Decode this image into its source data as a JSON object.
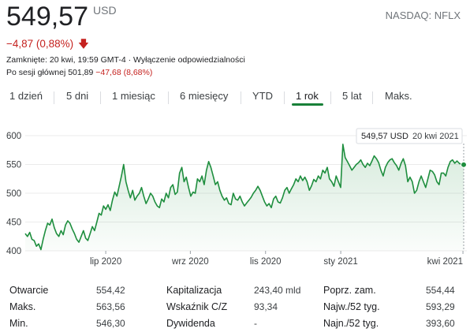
{
  "quote": {
    "price": "549,57",
    "currency": "USD",
    "ticker": "NASDAQ: NFLX",
    "change": "−4,87 (0,88%)",
    "change_arrow": "down-arrow-icon",
    "closed_line": "Zamknięte: 20 kwi, 19:59 GMT-4 · Wyłączenie odpowiedzialności",
    "after_hours_prefix": "Po sesji głównej 501,89",
    "after_hours_change": "−47,68 (8,68%)"
  },
  "tabs": [
    "1 dzień",
    "5 dni",
    "1 miesiąc",
    "6 miesięcy",
    "YTD",
    "1 rok",
    "5 lat",
    "Maks."
  ],
  "active_tab": 5,
  "tooltip": {
    "price": "549,57 USD",
    "date": "20 kwi 2021"
  },
  "colors": {
    "line": "#1e8e3e",
    "negative": "#c5221f",
    "active_tab": "#188038"
  },
  "chart_data": {
    "type": "area",
    "y_ticks": [
      "600",
      "550",
      "500",
      "450",
      "400"
    ],
    "ylim": [
      400,
      600
    ],
    "x_ticks": [
      "lip 2020",
      "wrz 2020",
      "lis 2020",
      "sty 2021",
      "kwi 2021"
    ],
    "x_tick_pos": [
      0.225,
      0.405,
      0.565,
      0.725,
      0.985
    ],
    "series": [
      {
        "values": [
          430,
          425,
          432,
          420,
          418,
          408,
          412,
          402,
          420,
          435,
          448,
          445,
          455,
          440,
          430,
          425,
          435,
          428,
          445,
          452,
          448,
          438,
          430,
          420,
          415,
          425,
          435,
          422,
          418,
          430,
          442,
          435,
          450,
          465,
          462,
          478,
          472,
          480,
          470,
          488,
          502,
          495,
          512,
          530,
          550,
          520,
          505,
          492,
          505,
          488,
          495,
          500,
          510,
          495,
          482,
          490,
          500,
          495,
          485,
          478,
          475,
          490,
          485,
          500,
          492,
          510,
          515,
          498,
          502,
          535,
          545,
          520,
          528,
          510,
          495,
          502,
          500,
          525,
          520,
          530,
          515,
          540,
          555,
          545,
          530,
          515,
          520,
          505,
          495,
          488,
          492,
          482,
          480,
          500,
          490,
          488,
          495,
          485,
          478,
          483,
          488,
          493,
          500,
          505,
          512,
          505,
          495,
          485,
          478,
          482,
          475,
          490,
          495,
          485,
          483,
          492,
          505,
          510,
          500,
          508,
          515,
          525,
          520,
          530,
          522,
          528,
          520,
          505,
          513,
          524,
          520,
          530,
          525,
          540,
          535,
          545,
          525,
          520,
          512,
          530,
          520,
          510,
          585,
          562,
          555,
          548,
          540,
          545,
          550,
          553,
          558,
          550,
          545,
          552,
          548,
          556,
          565,
          560,
          553,
          540,
          530,
          545,
          553,
          558,
          560,
          553,
          548,
          540,
          552,
          560,
          548,
          520,
          528,
          520,
          500,
          505,
          520,
          530,
          520,
          510,
          525,
          540,
          538,
          532,
          520,
          515,
          535,
          535,
          530,
          545,
          555,
          558,
          552,
          556,
          552,
          550,
          549.57
        ]
      }
    ]
  },
  "stats": [
    {
      "label": "Otwarcie",
      "value": "554,42"
    },
    {
      "label": "Maks.",
      "value": "563,56"
    },
    {
      "label": "Min.",
      "value": "546,30"
    },
    {
      "label": "Kapitalizacja",
      "value": "243,40 mld"
    },
    {
      "label": "Wskaźnik C/Z",
      "value": "93,34"
    },
    {
      "label": "Dywidenda",
      "value": "-"
    },
    {
      "label": "Poprz. zam.",
      "value": "554,44"
    },
    {
      "label": "Najw./52 tyg.",
      "value": "593,29"
    },
    {
      "label": "Najn./52 tyg.",
      "value": "393,60"
    }
  ]
}
